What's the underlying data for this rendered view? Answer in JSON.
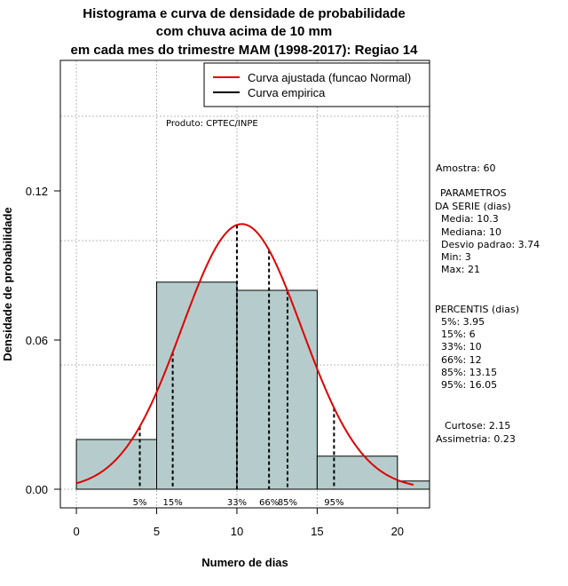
{
  "chart_data": {
    "type": "bar",
    "title_lines": [
      "Histograma e curva de densidade de probabilidade",
      "com chuva acima de 10 mm",
      "em cada mes do trimestre MAM (1998-2017): Regiao 14"
    ],
    "xlabel": "Numero de dias",
    "ylabel": "Densidade de probabilidade",
    "xlim": [
      -1,
      22
    ],
    "ylim": [
      -0.0075,
      0.1725
    ],
    "x_ticks": [
      0,
      5,
      10,
      15,
      20
    ],
    "x_tick_labels": [
      "0",
      "5",
      "10",
      "15",
      "20"
    ],
    "y_ticks": [
      0.0,
      0.06,
      0.12
    ],
    "y_tick_labels": [
      "0.00",
      "0.06",
      "0.12"
    ],
    "grid_x": [
      0,
      5,
      10,
      15,
      20
    ],
    "grid_y": [
      0.0,
      0.05,
      0.1,
      0.15
    ],
    "bins": [
      {
        "x0": 0,
        "x1": 5,
        "density": 0.02
      },
      {
        "x0": 5,
        "x1": 10,
        "density": 0.0833
      },
      {
        "x0": 10,
        "x1": 15,
        "density": 0.08
      },
      {
        "x0": 15,
        "x1": 20,
        "density": 0.0133
      },
      {
        "x0": 20,
        "x1": 22,
        "density": 0.0033
      }
    ],
    "curve": {
      "name": "Curva ajustada (funcao Normal)",
      "mean": 10.3,
      "sd": 3.74,
      "x_from": 0,
      "x_to": 21
    },
    "percentile_lines": [
      {
        "label": "5%",
        "x": 3.95
      },
      {
        "label": "15%",
        "x": 6
      },
      {
        "label": "33%",
        "x": 10
      },
      {
        "label": "66%",
        "x": 12
      },
      {
        "label": "85%",
        "x": 13.15
      },
      {
        "label": "95%",
        "x": 16.05
      }
    ],
    "legend": [
      {
        "label": "Curva ajustada (funcao Normal)",
        "color": "#e00000"
      },
      {
        "label": "Curva empirica",
        "color": "#000000"
      }
    ],
    "bar_color": "#b6cccc",
    "curve_color": "#e00000"
  },
  "product_label": "Produto: CPTEC/INPE",
  "side_panel": {
    "amostra": "Amostra: 60",
    "params_header_1": "PARAMETROS",
    "params_header_2": "DA SERIE (dias)",
    "params": [
      "Media: 10.3",
      "Mediana: 10",
      "Desvio padrao: 3.74",
      "Min: 3",
      "Max: 21"
    ],
    "percentis_header": "PERCENTIS (dias)",
    "percentis": [
      "5%: 3.95",
      "15%: 6",
      "33%: 10",
      "66%: 12",
      "85%: 13.15",
      "95%: 16.05"
    ],
    "curtose": "Curtose: 2.15",
    "assimetria": "Assimetria: 0.23"
  }
}
